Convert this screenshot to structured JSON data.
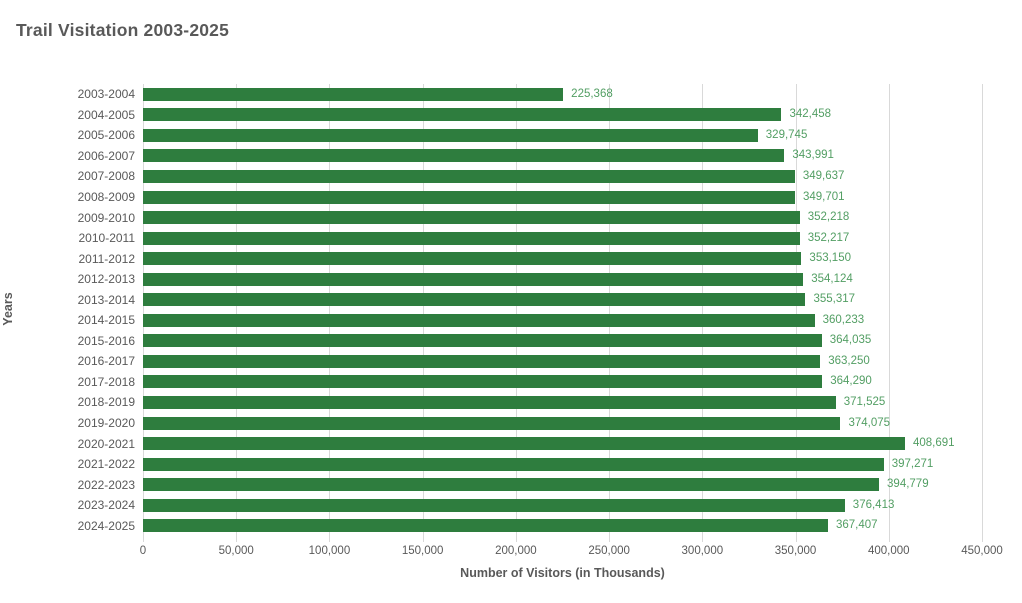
{
  "page": {
    "background": "#ffffff"
  },
  "chart_data": {
    "type": "bar",
    "orientation": "horizontal",
    "title": "Trail Visitation 2003-2025",
    "xlabel": "Number of Visitors (in Thousands)",
    "ylabel": "Years",
    "categories": [
      "2003-2004",
      "2004-2005",
      "2005-2006",
      "2006-2007",
      "2007-2008",
      "2008-2009",
      "2009-2010",
      "2010-2011",
      "2011-2012",
      "2012-2013",
      "2013-2014",
      "2014-2015",
      "2015-2016",
      "2016-2017",
      "2017-2018",
      "2018-2019",
      "2019-2020",
      "2020-2021",
      "2021-2022",
      "2022-2023",
      "2023-2024",
      "2024-2025"
    ],
    "values": [
      225368,
      342458,
      329745,
      343991,
      349637,
      349701,
      352218,
      352217,
      353150,
      354124,
      355317,
      360233,
      364035,
      363250,
      364290,
      371525,
      374075,
      408691,
      397271,
      394779,
      376413,
      367407
    ],
    "xlim": [
      0,
      450000
    ],
    "x_ticks": [
      0,
      50000,
      100000,
      150000,
      200000,
      250000,
      300000,
      350000,
      400000,
      450000
    ],
    "grid": true,
    "data_labels": true,
    "legend": "none",
    "colors": {
      "bar": "#2e7d3e",
      "value_label": "#529e63",
      "axis_text": "#595959",
      "gridline": "#d9d9d9"
    }
  }
}
